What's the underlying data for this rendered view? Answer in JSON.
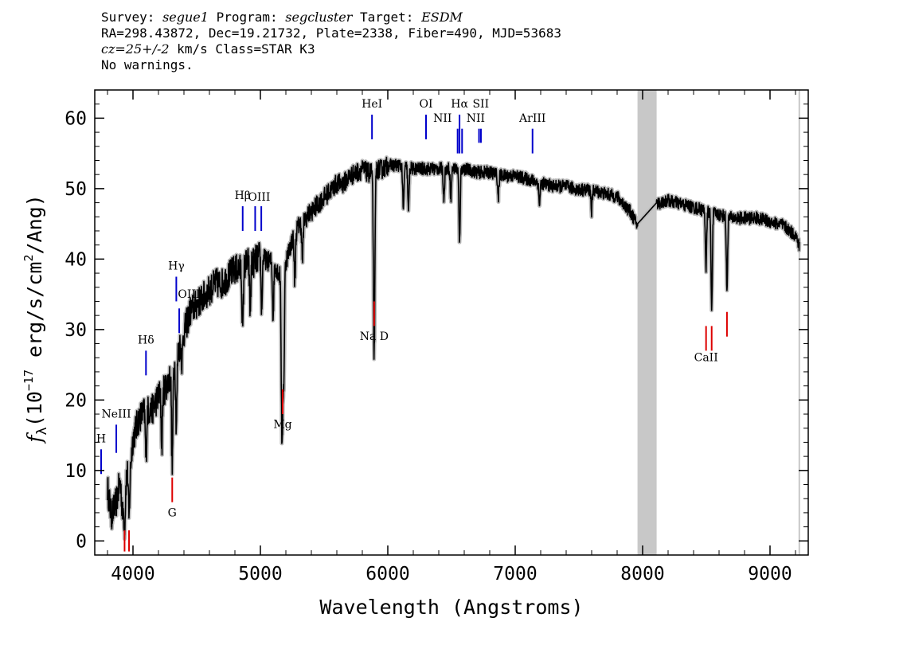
{
  "header": {
    "survey_label": "Survey:",
    "survey": "segue1",
    "program_label": "Program:",
    "program": "segcluster",
    "target_label": "Target:",
    "target": "ESDM",
    "line2": "RA=298.43872, Dec=19.21732, Plate=2338, Fiber=490, MJD=53683",
    "cz_value": "cz=25+/-2",
    "cz_rest": " km/s Class=STAR K3",
    "line4": "No warnings."
  },
  "chart_data": {
    "type": "line",
    "title": "",
    "xlabel": "Wavelength (Angstroms)",
    "ylabel_parts": {
      "f": "f",
      "sub": "λ",
      "open": "(10",
      "exp": "−17",
      "mid": " erg/s/cm",
      "exp2": "2",
      "close": "/Ang)"
    },
    "xlim": [
      3700,
      9300
    ],
    "ylim": [
      -2,
      64
    ],
    "xticks": [
      4000,
      5000,
      6000,
      7000,
      8000,
      9000
    ],
    "xtick_labels": [
      "4000",
      "5000",
      "6000",
      "7000",
      "8000",
      "9000"
    ],
    "yticks": [
      0,
      10,
      20,
      30,
      40,
      50,
      60
    ],
    "ytick_labels": [
      "0",
      "10",
      "20",
      "30",
      "40",
      "50",
      "60"
    ],
    "grid": false,
    "masked_region": [
      7960,
      8110
    ],
    "colors": {
      "spectrum": "#000000",
      "error_band": "#bbbbbb",
      "mask": "#c8c8c8",
      "emission": "#0000cc",
      "absorption": "#dd0000"
    },
    "spectrum_continuum": [
      [
        3800,
        8
      ],
      [
        3830,
        4
      ],
      [
        3870,
        6
      ],
      [
        3900,
        9
      ],
      [
        3920,
        4
      ],
      [
        3950,
        10
      ],
      [
        3980,
        11
      ],
      [
        4000,
        15
      ],
      [
        4050,
        18
      ],
      [
        4100,
        19
      ],
      [
        4150,
        19
      ],
      [
        4200,
        21
      ],
      [
        4250,
        22
      ],
      [
        4300,
        24
      ],
      [
        4350,
        27
      ],
      [
        4400,
        30
      ],
      [
        4450,
        33
      ],
      [
        4500,
        34
      ],
      [
        4550,
        35
      ],
      [
        4600,
        36
      ],
      [
        4650,
        37
      ],
      [
        4700,
        37
      ],
      [
        4750,
        38
      ],
      [
        4800,
        39
      ],
      [
        4850,
        39
      ],
      [
        4900,
        40
      ],
      [
        4950,
        40
      ],
      [
        5000,
        41
      ],
      [
        5050,
        40
      ],
      [
        5100,
        40
      ],
      [
        5150,
        38
      ],
      [
        5200,
        40
      ],
      [
        5250,
        43
      ],
      [
        5300,
        45
      ],
      [
        5350,
        46
      ],
      [
        5400,
        47
      ],
      [
        5450,
        48
      ],
      [
        5500,
        49
      ],
      [
        5550,
        50
      ],
      [
        5600,
        51
      ],
      [
        5650,
        51
      ],
      [
        5700,
        52
      ],
      [
        5750,
        52.5
      ],
      [
        5800,
        53
      ],
      [
        5850,
        52.5
      ],
      [
        5900,
        53
      ],
      [
        5950,
        53
      ],
      [
        6000,
        53.5
      ],
      [
        6100,
        53.5
      ],
      [
        6200,
        53
      ],
      [
        6300,
        53
      ],
      [
        6400,
        53
      ],
      [
        6500,
        53
      ],
      [
        6600,
        53
      ],
      [
        6700,
        52.5
      ],
      [
        6800,
        52.5
      ],
      [
        6900,
        52
      ],
      [
        7000,
        52
      ],
      [
        7100,
        51.5
      ],
      [
        7200,
        51
      ],
      [
        7300,
        50.5
      ],
      [
        7400,
        50.5
      ],
      [
        7500,
        50
      ],
      [
        7600,
        50
      ],
      [
        7700,
        49.5
      ],
      [
        7800,
        49
      ],
      [
        7900,
        47
      ],
      [
        7960,
        45
      ],
      [
        8110,
        48
      ],
      [
        8200,
        48.5
      ],
      [
        8300,
        48
      ],
      [
        8400,
        47.5
      ],
      [
        8500,
        47
      ],
      [
        8600,
        46.5
      ],
      [
        8700,
        46
      ],
      [
        8800,
        46
      ],
      [
        8900,
        46
      ],
      [
        9000,
        45.5
      ],
      [
        9100,
        45
      ],
      [
        9200,
        43.5
      ],
      [
        9230,
        42
      ]
    ],
    "spectrum_dips": [
      [
        3934,
        2.5
      ],
      [
        3969,
        3.5
      ],
      [
        4102,
        12
      ],
      [
        4226,
        14
      ],
      [
        4308,
        11
      ],
      [
        4340,
        17
      ],
      [
        4384,
        26
      ],
      [
        4861,
        30
      ],
      [
        4920,
        33
      ],
      [
        5010,
        33
      ],
      [
        5100,
        32
      ],
      [
        5167,
        24
      ],
      [
        5173,
        23.5
      ],
      [
        5184,
        24
      ],
      [
        5270,
        37
      ],
      [
        5330,
        40
      ],
      [
        5890,
        36.5
      ],
      [
        5896,
        38
      ],
      [
        6122,
        47
      ],
      [
        6162,
        47
      ],
      [
        6440,
        49
      ],
      [
        6495,
        49
      ],
      [
        6563,
        42.5
      ],
      [
        6867,
        49
      ],
      [
        7190,
        48
      ],
      [
        7600,
        47
      ],
      [
        8498,
        39
      ],
      [
        8542,
        33
      ],
      [
        8662,
        36
      ]
    ],
    "emission_lines": [
      {
        "label": "H",
        "x": 3750,
        "y_lo": 9.5,
        "y_hi": 13,
        "label_y": 14,
        "label_x": 3750
      },
      {
        "label": "NeIII",
        "x": 3869,
        "y_lo": 12.5,
        "y_hi": 16.5,
        "label_y": 17.5,
        "label_x": 3869
      },
      {
        "label": "Hδ",
        "x": 4102,
        "y_lo": 23.5,
        "y_hi": 27,
        "label_y": 28,
        "label_x": 4102
      },
      {
        "label": "Hγ",
        "x": 4340,
        "y_lo": 34,
        "y_hi": 37.5,
        "label_y": 38.5,
        "label_x": 4340
      },
      {
        "label": "OIII",
        "x": 4363,
        "y_lo": 29.5,
        "y_hi": 33,
        "label_y": 34.5,
        "label_x": 4440
      },
      {
        "label": "Hβ",
        "x": 4861,
        "y_lo": 44,
        "y_hi": 47.5,
        "label_y": 48.5,
        "label_x": 4861
      },
      {
        "label": "OIII",
        "x": 4959,
        "y_lo": 44,
        "y_hi": 47.5,
        "label_y": 48.3,
        "label_x": 4990
      },
      {
        "label": "OIII",
        "x": 5007,
        "y_lo": 44,
        "y_hi": 47.5,
        "label_y": null,
        "label_x": 5007
      },
      {
        "label": "HeI",
        "x": 5876,
        "y_lo": 57,
        "y_hi": 60.5,
        "label_y": 61.5,
        "label_x": 5876
      },
      {
        "label": "OI",
        "x": 6300,
        "y_lo": 57,
        "y_hi": 60.5,
        "label_y": 61.5,
        "label_x": 6300
      },
      {
        "label": "NII",
        "x": 6548,
        "y_lo": 55,
        "y_hi": 58.5,
        "label_y": 59.5,
        "label_x": 6430
      },
      {
        "label": "Hα",
        "x": 6563,
        "y_lo": 55,
        "y_hi": 60.5,
        "label_y": 61.5,
        "label_x": 6563
      },
      {
        "label": "NII",
        "x": 6583,
        "y_lo": 55,
        "y_hi": 58.5,
        "label_y": 59.5,
        "label_x": 6690
      },
      {
        "label": "SII",
        "x": 6716,
        "y_lo": 56.5,
        "y_hi": 58.5,
        "label_y": 61.5,
        "label_x": 6730
      },
      {
        "label": "SII",
        "x": 6731,
        "y_lo": 56.5,
        "y_hi": 58.5,
        "label_y": null,
        "label_x": 6731
      },
      {
        "label": "ArIII",
        "x": 7136,
        "y_lo": 55,
        "y_hi": 58.5,
        "label_y": 59.5,
        "label_x": 7136
      }
    ],
    "absorption_lines": [
      {
        "label": "",
        "x": 3934,
        "y_lo": -1.5,
        "y_hi": 1.5,
        "label_y": null
      },
      {
        "label": "",
        "x": 3969,
        "y_lo": -1.5,
        "y_hi": 1.5,
        "label_y": null
      },
      {
        "label": "G",
        "x": 4308,
        "y_lo": 5.5,
        "y_hi": 9,
        "label_y": 3.5
      },
      {
        "label": "Mg",
        "x": 5175,
        "y_lo": 18,
        "y_hi": 21.5,
        "label_y": 16
      },
      {
        "label": "Na D",
        "x": 5893,
        "y_lo": 30.5,
        "y_hi": 34,
        "label_y": 28.5
      },
      {
        "label": "CaII",
        "x": 8498,
        "y_lo": 27,
        "y_hi": 30.5,
        "label_y": 25.5
      },
      {
        "label": "",
        "x": 8542,
        "y_lo": 27,
        "y_hi": 30.5,
        "label_y": null
      },
      {
        "label": "",
        "x": 8662,
        "y_lo": 29,
        "y_hi": 32.5,
        "label_y": null
      }
    ]
  }
}
